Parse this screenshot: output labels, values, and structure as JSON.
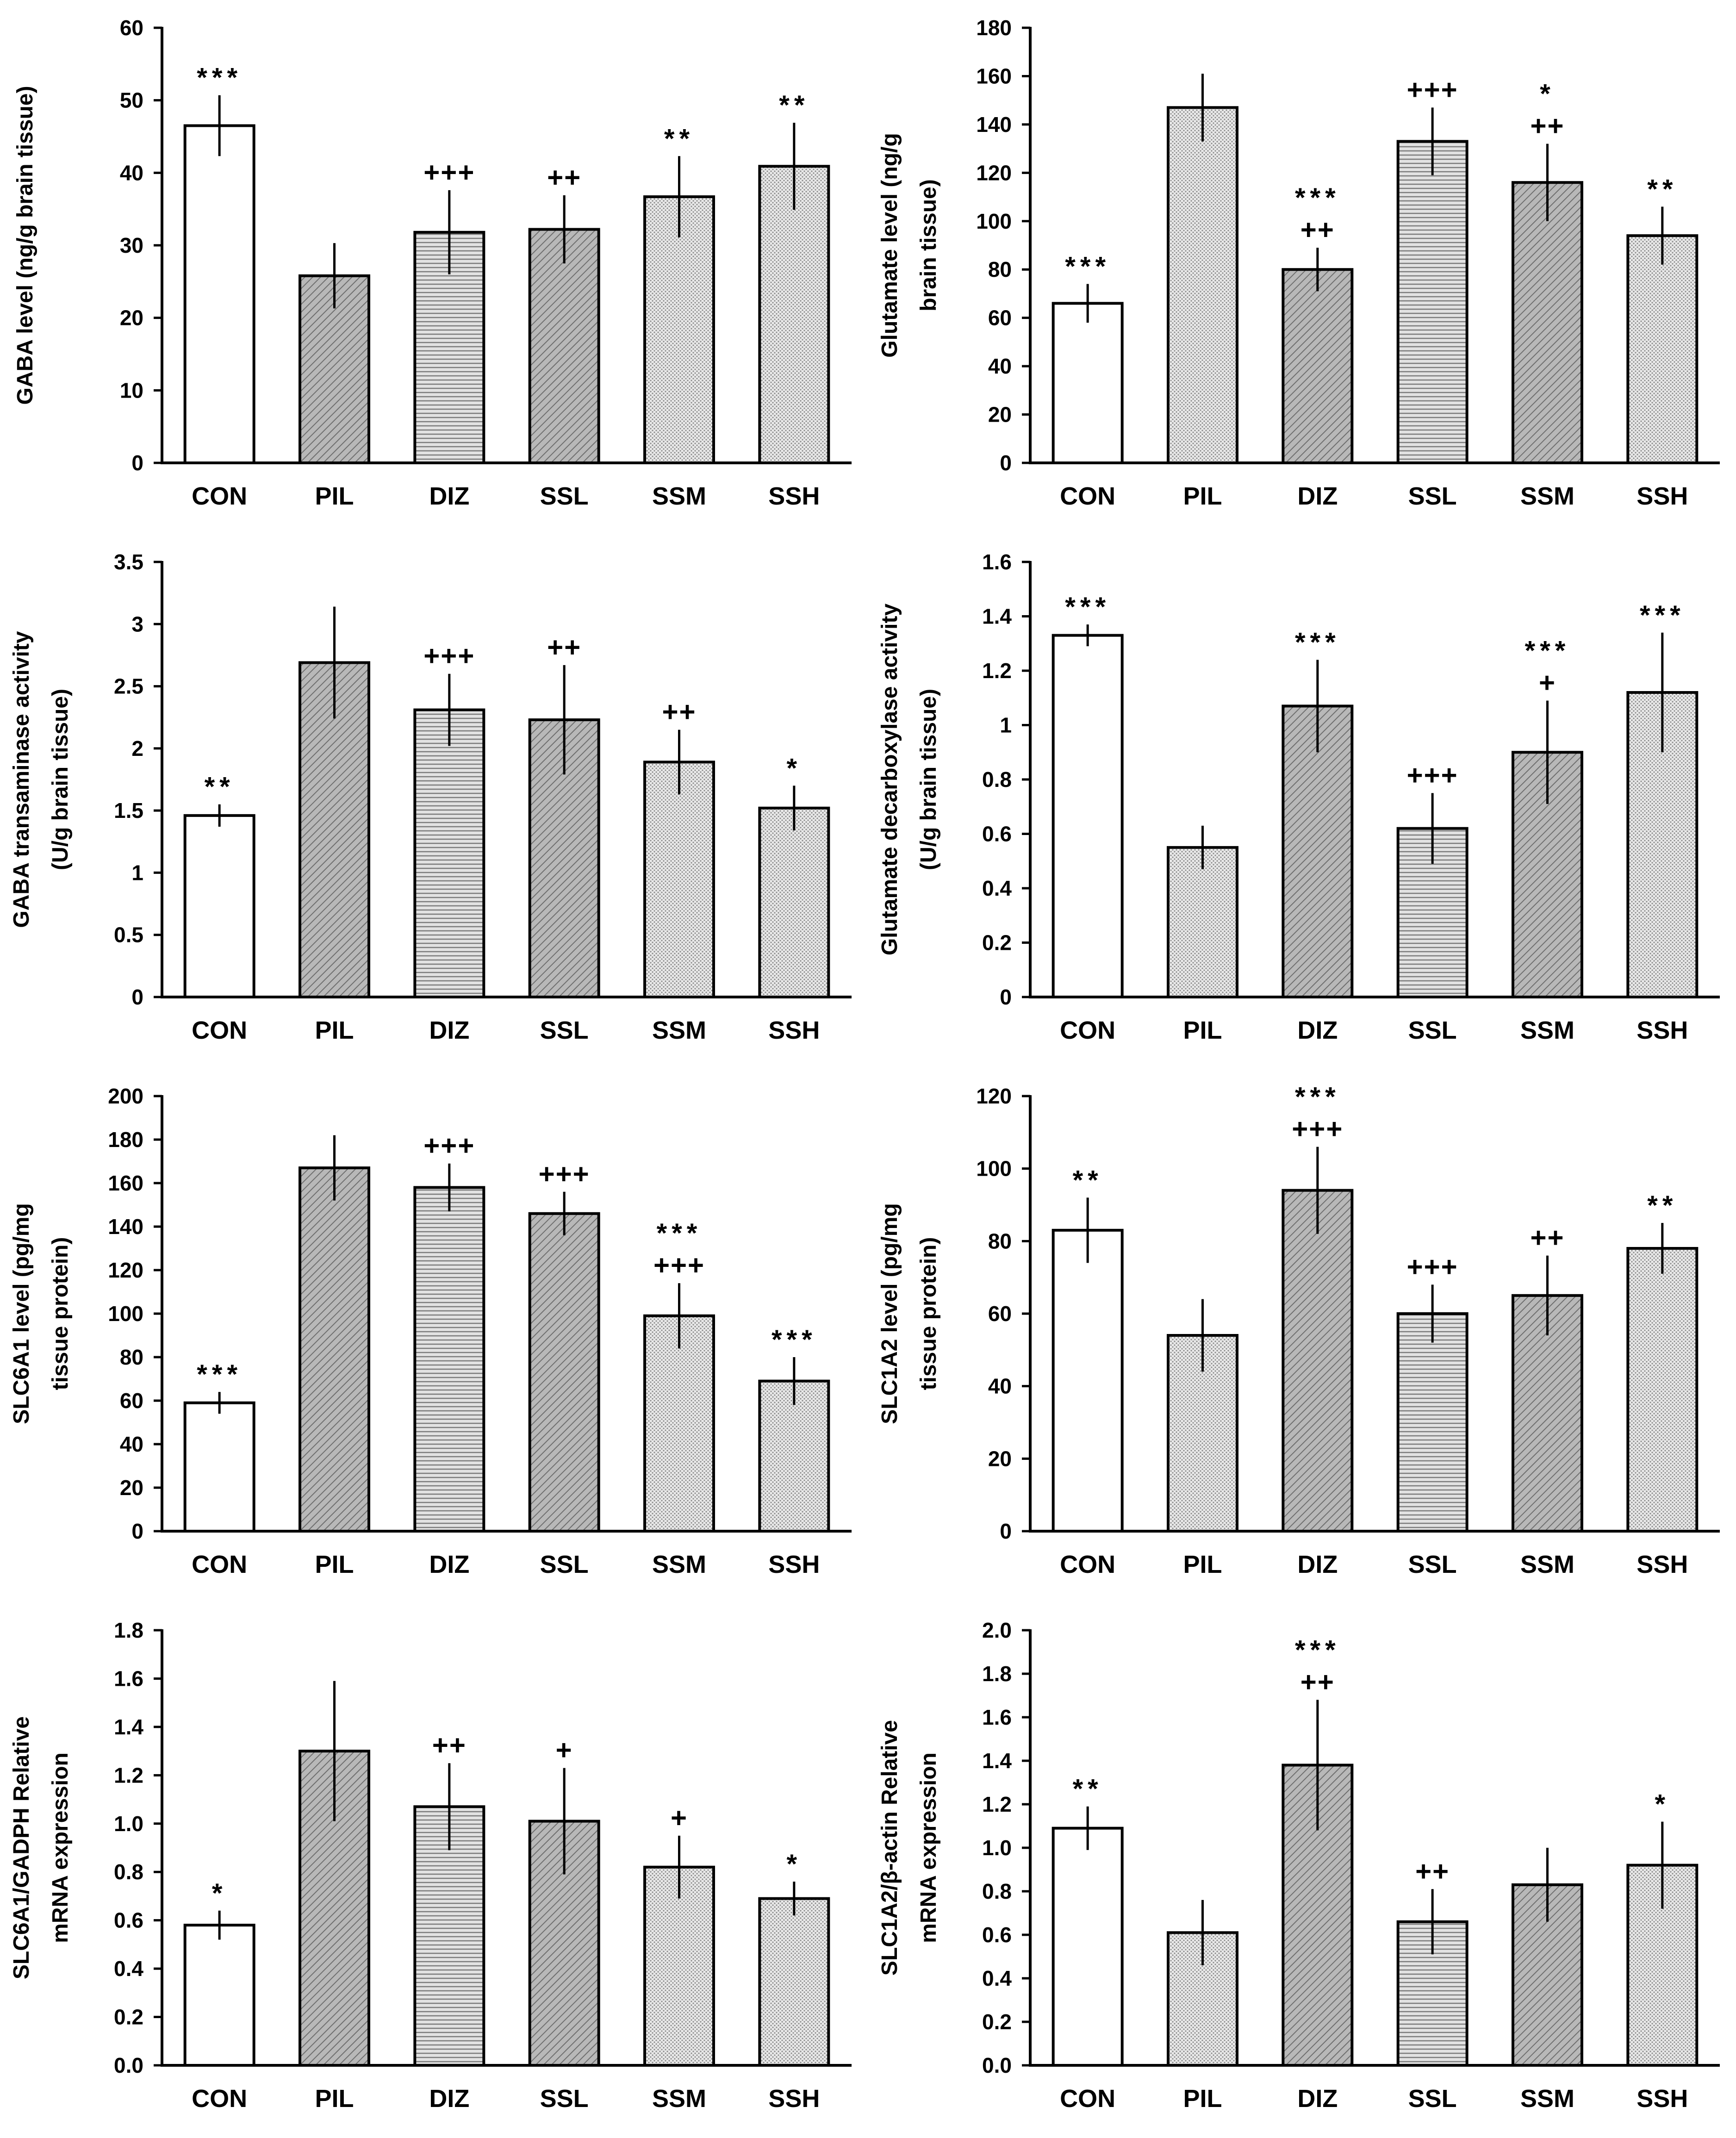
{
  "chart_data": [
    {
      "type": "bar",
      "ylabel": "GABA level (ng/g brain tissue)",
      "ylim": [
        0,
        60
      ],
      "yticks": [
        "0",
        "10",
        "20",
        "30",
        "40",
        "50",
        "60"
      ],
      "categories": [
        "CON",
        "PIL",
        "DIZ",
        "SSL",
        "SSM",
        "SSH"
      ],
      "values": [
        46.5,
        25.8,
        31.8,
        32.2,
        36.7,
        40.9
      ],
      "errors": [
        4.2,
        4.5,
        5.8,
        4.7,
        5.6,
        6.0
      ],
      "annotations": [
        [
          "***"
        ],
        [],
        [
          "+++"
        ],
        [
          "++"
        ],
        [
          "**"
        ],
        [
          "**"
        ]
      ]
    },
    {
      "type": "bar",
      "ylabel": "Glutamate level (ng/g brain tissue)",
      "ylim": [
        0,
        180
      ],
      "yticks": [
        "0",
        "20",
        "40",
        "60",
        "80",
        "100",
        "120",
        "140",
        "160",
        "180"
      ],
      "categories": [
        "CON",
        "PIL",
        "DIZ",
        "SSL",
        "SSM",
        "SSH"
      ],
      "values": [
        66,
        147,
        80,
        133,
        116,
        94
      ],
      "errors": [
        8,
        14,
        9,
        14,
        16,
        12
      ],
      "annotations": [
        [
          "***"
        ],
        [],
        [
          "***",
          "++"
        ],
        [
          "+++"
        ],
        [
          "*",
          "++"
        ],
        [
          "**"
        ]
      ]
    },
    {
      "type": "bar",
      "ylabel": "GABA transaminase activity (U/g brain tissue)",
      "ylim": [
        0,
        3.5
      ],
      "yticks": [
        "0",
        "0.5",
        "1",
        "1.5",
        "2",
        "2.5",
        "3",
        "3.5"
      ],
      "categories": [
        "CON",
        "PIL",
        "DIZ",
        "SSL",
        "SSM",
        "SSH"
      ],
      "values": [
        1.46,
        2.69,
        2.31,
        2.23,
        1.89,
        1.52
      ],
      "errors": [
        0.09,
        0.45,
        0.29,
        0.44,
        0.26,
        0.18
      ],
      "annotations": [
        [
          "**"
        ],
        [],
        [
          "+++"
        ],
        [
          "++"
        ],
        [
          "++"
        ],
        [
          "*"
        ]
      ]
    },
    {
      "type": "bar",
      "ylabel": "Glutamate decarboxylase activity (U/g brain tissue)",
      "ylim": [
        0,
        1.6
      ],
      "yticks": [
        "0",
        "0.2",
        "0.4",
        "0.6",
        "0.8",
        "1",
        "1.2",
        "1.4",
        "1.6"
      ],
      "categories": [
        "CON",
        "PIL",
        "DIZ",
        "SSL",
        "SSM",
        "SSH"
      ],
      "values": [
        1.33,
        0.55,
        1.07,
        0.62,
        0.9,
        1.12
      ],
      "errors": [
        0.04,
        0.08,
        0.17,
        0.13,
        0.19,
        0.22
      ],
      "annotations": [
        [
          "***"
        ],
        [],
        [
          "***"
        ],
        [
          "+++"
        ],
        [
          "***",
          "+"
        ],
        [
          "***"
        ]
      ]
    },
    {
      "type": "bar",
      "ylabel": "SLC6A1 level (pg/mg tissue protein)",
      "ylim": [
        0,
        200
      ],
      "yticks": [
        "0",
        "20",
        "40",
        "60",
        "80",
        "100",
        "120",
        "140",
        "160",
        "180",
        "200"
      ],
      "categories": [
        "CON",
        "PIL",
        "DIZ",
        "SSL",
        "SSM",
        "SSH"
      ],
      "values": [
        59,
        167,
        158,
        146,
        99,
        69
      ],
      "errors": [
        5,
        15,
        11,
        10,
        15,
        11
      ],
      "annotations": [
        [
          "***"
        ],
        [],
        [
          "+++"
        ],
        [
          "+++"
        ],
        [
          "***",
          "+++"
        ],
        [
          "***"
        ]
      ]
    },
    {
      "type": "bar",
      "ylabel": "SLC1A2 level (pg/mg tissue protein)",
      "ylim": [
        0,
        120
      ],
      "yticks": [
        "0",
        "20",
        "40",
        "60",
        "80",
        "100",
        "120"
      ],
      "categories": [
        "CON",
        "PIL",
        "DIZ",
        "SSL",
        "SSM",
        "SSH"
      ],
      "values": [
        83,
        54,
        94,
        60,
        65,
        78
      ],
      "errors": [
        9,
        10,
        12,
        8,
        11,
        7
      ],
      "annotations": [
        [
          "**"
        ],
        [],
        [
          "***",
          "+++"
        ],
        [
          "+++"
        ],
        [
          "++"
        ],
        [
          "**"
        ]
      ]
    },
    {
      "type": "bar",
      "ylabel": "SLC6A1/GADPH Relative mRNA expression",
      "ylim": [
        0,
        1.8
      ],
      "yticks": [
        "0.0",
        "0.2",
        "0.4",
        "0.6",
        "0.8",
        "1.0",
        "1.2",
        "1.4",
        "1.6",
        "1.8"
      ],
      "categories": [
        "CON",
        "PIL",
        "DIZ",
        "SSL",
        "SSM",
        "SSH"
      ],
      "values": [
        0.58,
        1.3,
        1.07,
        1.01,
        0.82,
        0.69
      ],
      "errors": [
        0.06,
        0.29,
        0.18,
        0.22,
        0.13,
        0.07
      ],
      "annotations": [
        [
          "*"
        ],
        [],
        [
          "++"
        ],
        [
          "+"
        ],
        [
          "+"
        ],
        [
          "*"
        ]
      ]
    },
    {
      "type": "bar",
      "ylabel": "SLC1A2/β-actin Relative mRNA expression",
      "ylim": [
        0,
        2.0
      ],
      "yticks": [
        "0.0",
        "0.2",
        "0.4",
        "0.6",
        "0.8",
        "1.0",
        "1.2",
        "1.4",
        "1.6",
        "1.8",
        "2.0"
      ],
      "categories": [
        "CON",
        "PIL",
        "DIZ",
        "SSL",
        "SSM",
        "SSH"
      ],
      "values": [
        1.09,
        0.61,
        1.38,
        0.66,
        0.83,
        0.92
      ],
      "errors": [
        0.1,
        0.15,
        0.3,
        0.15,
        0.17,
        0.2
      ],
      "annotations": [
        [
          "**"
        ],
        [],
        [
          "***",
          "++"
        ],
        [
          "++"
        ],
        [],
        [
          "*"
        ]
      ]
    }
  ]
}
